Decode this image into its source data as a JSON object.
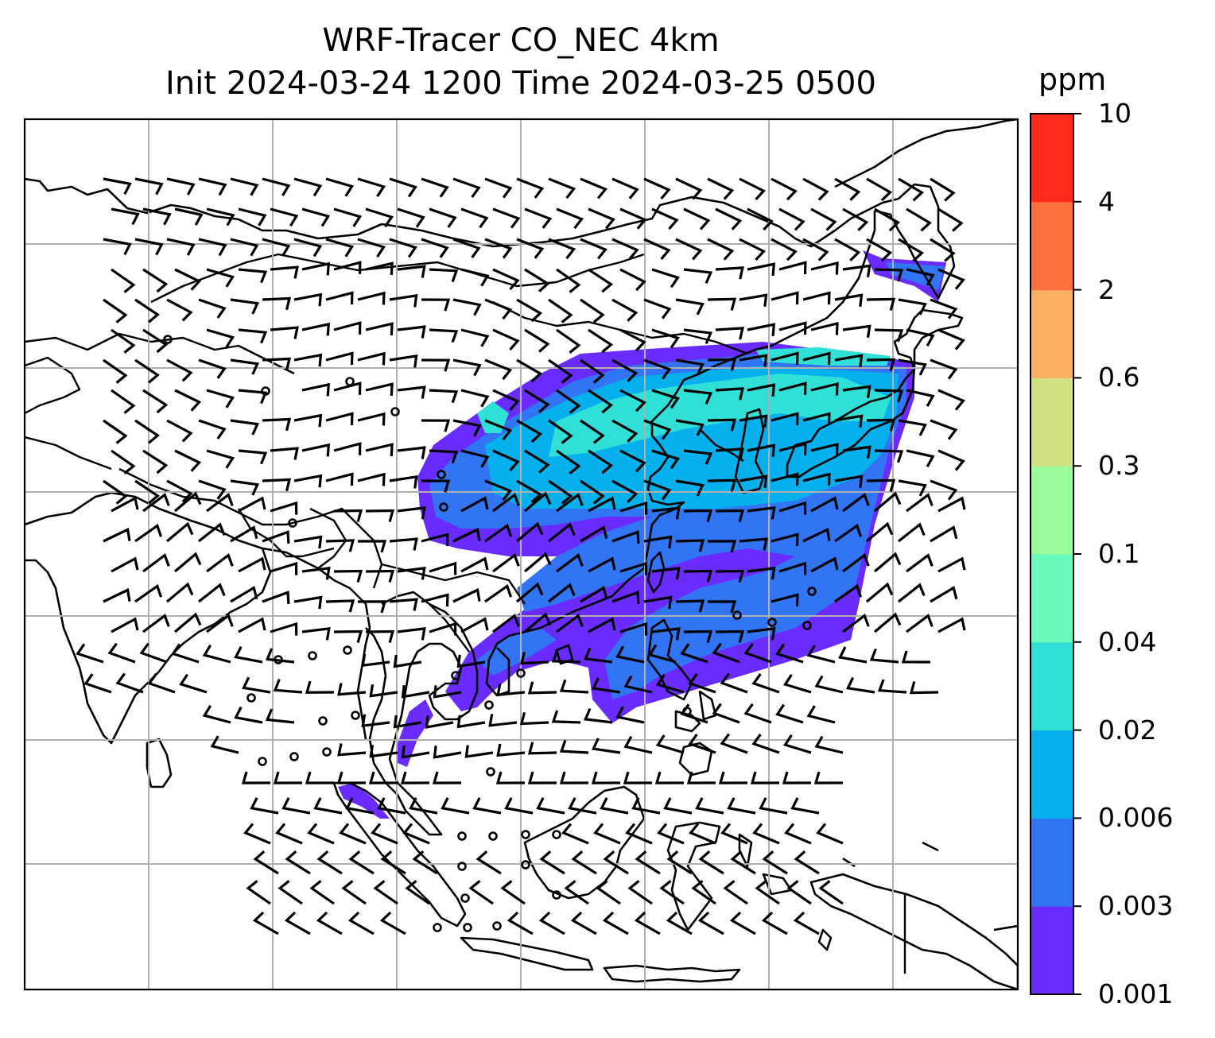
{
  "title": {
    "line1": "WRF-Tracer CO_NEC 4km",
    "line2": "Init 2024-03-24 1200 Time 2024-03-25 0500"
  },
  "colorbar": {
    "unit": "ppm",
    "levels": [
      "0.001",
      "0.003",
      "0.006",
      "0.02",
      "0.04",
      "0.1",
      "0.3",
      "0.6",
      "2",
      "4",
      "10"
    ],
    "colors": [
      "#6a2bff",
      "#3175f5",
      "#06b0ec",
      "#30dfd6",
      "#6afbbd",
      "#9cfb9a",
      "#cfe182",
      "#feb062",
      "#fe713f",
      "#ff2a1b"
    ]
  },
  "colors": {
    "coastline": "#000000",
    "gridline": "#b0b0b0",
    "wind_barb": "#000000"
  },
  "legend_placement": "right"
}
